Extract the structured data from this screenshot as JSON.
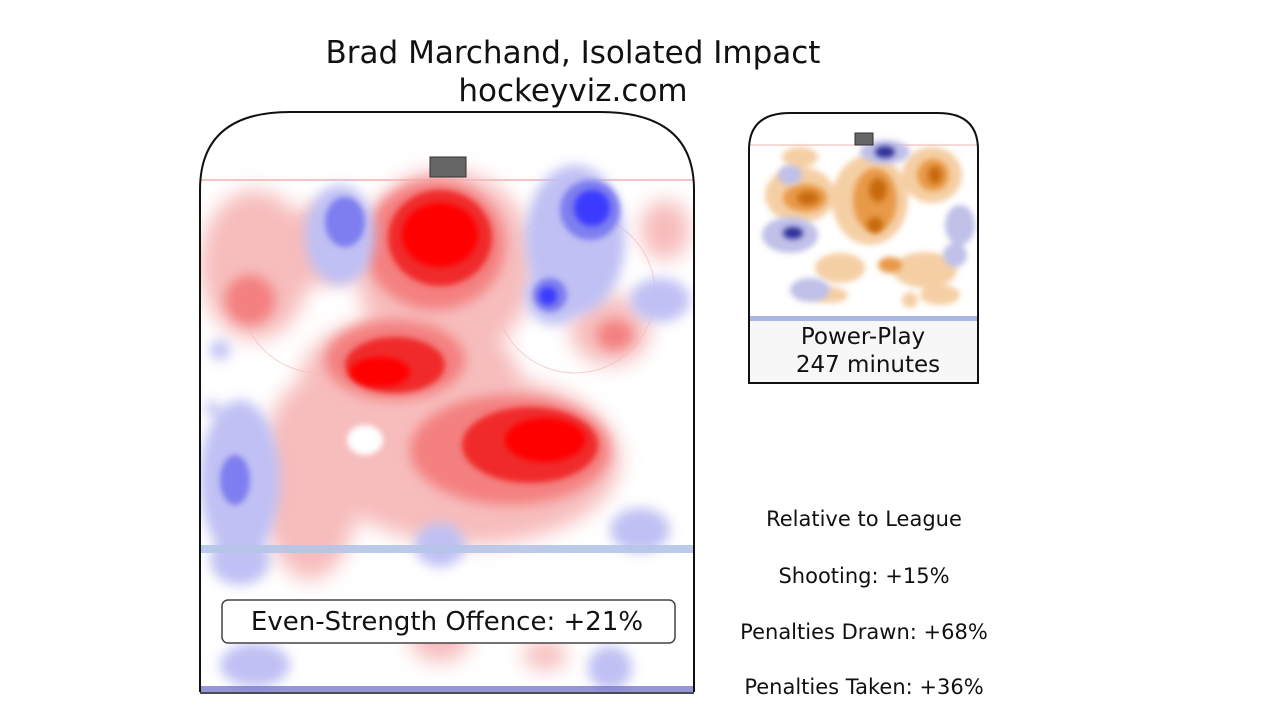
{
  "chart_data": {
    "type": "heatmap",
    "title": "Brad Marchand, Isolated Impact",
    "subtitle": "hockeyviz.com",
    "colors": {
      "more_than_league": "#ff0000",
      "less_than_league": "#3b3bff",
      "powerplay_more": "#e07a10",
      "powerplay_less": "#2e2e9a"
    },
    "panels": [
      {
        "name": "even-strength",
        "label": "Even-Strength Offence: +21%"
      },
      {
        "name": "power-play",
        "label_line1": "Power-Play",
        "label_line2": "247 minutes"
      }
    ],
    "stats": {
      "heading": "Relative to League",
      "items": [
        {
          "label": "Shooting: +15%",
          "value": 15
        },
        {
          "label": "Penalties Drawn: +68%",
          "value": 68
        },
        {
          "label": "Penalties Taken: +36%",
          "value": 36
        }
      ]
    }
  }
}
